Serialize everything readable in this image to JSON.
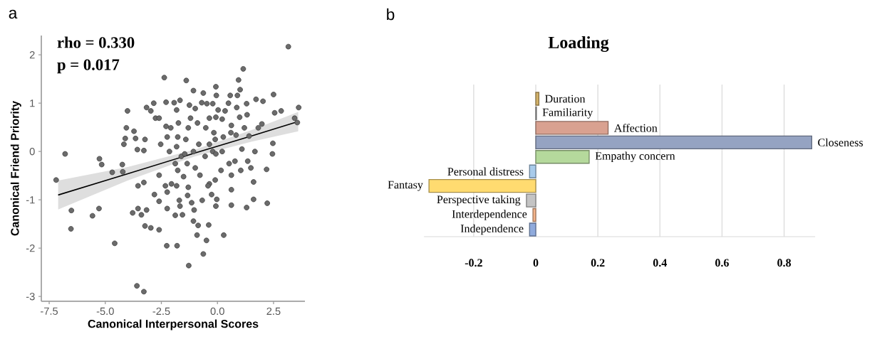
{
  "chart_data": [
    {
      "type": "scatter",
      "xlabel": "Canonical Interpersonal Scores",
      "ylabel": "Canonical Friend Priority",
      "annotations": [
        "a",
        "rho = 0.330",
        "p = 0.017"
      ],
      "xlim": [
        -7.85,
        3.9
      ],
      "ylim": [
        -3.1,
        2.4
      ],
      "xticks": [
        -7.5,
        {
          "value": -5,
          "label": "-5.0"
        },
        -2.5,
        {
          "value": 0,
          "label": "0.0"
        },
        2.5
      ],
      "yticks": [
        -3,
        -2,
        -1,
        0,
        1,
        2
      ],
      "series": [
        {
          "type": "scatter",
          "color": "#6b6b6b",
          "marker": "circle",
          "x": [
            -7.19,
            -6.79,
            -6.51,
            -6.53,
            -5.57,
            -5.28,
            -5.26,
            -5.16,
            -4.58,
            -4.69,
            -4.24,
            -4.22,
            -4.17,
            -4.11,
            -4.06,
            -4.01,
            -3.72,
            -3.78,
            -3.65,
            -3.59,
            -3.28,
            -3.54,
            -3.39,
            -3.16,
            -3.23,
            -2.97,
            -2.6,
            -3.54,
            -3.28,
            -3.57,
            -3.28,
            -3.16,
            -3.23,
            -2.97,
            -2.84,
            -2.76,
            -2.6,
            -2.53,
            -2.37,
            -2.29,
            -2.29,
            -2.24,
            -2.14,
            -2.08,
            -2.81,
            -2.6,
            -2.24,
            -2.26,
            -1.8,
            -2.24,
            -2.32,
            -2.05,
            -2.6,
            -1.82,
            -1.88,
            -1.56,
            -1.7,
            -1.67,
            -1.93,
            -1.82,
            -1.67,
            -1.74,
            -1.77,
            -1.82,
            -1.88,
            -1.77,
            -1.51,
            -1.61,
            -1.39,
            -1.25,
            -1.2,
            -1.3,
            -1.41,
            -1.46,
            -1.35,
            -1.3,
            -1.33,
            -1.15,
            -1.04,
            -1.07,
            -0.86,
            -0.91,
            -0.63,
            -1.28,
            -0.49,
            -0.39,
            -0.68,
            -1.07,
            -0.99,
            -0.89,
            -1.07,
            -0.83,
            -0.99,
            -0.78,
            -0.63,
            -0.7,
            -0.47,
            -0.36,
            -0.52,
            -0.55,
            -0.36,
            -0.36,
            -0.42,
            -0.26,
            -0.07,
            -0.05,
            -0.21,
            0.03,
            -0.07,
            -0.16,
            -0.1,
            -0.21,
            -0.07,
            -0.1,
            -0.03,
            -0.07,
            0.28,
            0.21,
            0.26,
            0.21,
            0.16,
            0.34,
            0.49,
            0.57,
            0.62,
            0.6,
            0.52,
            0.62,
            0.62,
            0.62,
            0.94,
            1.01,
            0.89,
            0.86,
            0.99,
            0.83,
            0.78,
            1.04,
            1.15,
            1.3,
            1.32,
            1.2,
            1.09,
            1.35,
            1.41,
            1.49,
            1.61,
            1.61,
            1.3,
            1.72,
            1.67,
            1.82,
            1.98,
            2.03,
            2.19,
            2.22,
            2.45,
            2.47,
            2.5,
            2.55,
            2.84,
            3.16,
            3.44,
            3.62,
            3.56
          ],
          "values": [
            -0.59,
            -0.05,
            -1.22,
            -1.6,
            -1.33,
            -1.18,
            -0.15,
            -0.27,
            -1.9,
            -0.43,
            -0.27,
            -0.42,
            0.15,
            0.27,
            0.49,
            0.84,
            0.42,
            -1.27,
            0.27,
            -2.78,
            -2.9,
            -1.18,
            -1.31,
            -1.21,
            -1.54,
            -1.58,
            -1.62,
            -0.71,
            -0.64,
            0.04,
            0.02,
            0.91,
            0.25,
            0.84,
            1.0,
            0.69,
            0.69,
            0.15,
            1.53,
            1.02,
            0.52,
            0.3,
            0.0,
            0.49,
            -0.89,
            -1.03,
            -1.18,
            -1.95,
            -1.95,
            -0.84,
            -0.71,
            -0.67,
            -0.49,
            -0.71,
            -1.32,
            -1.31,
            -1.01,
            -1.13,
            1.01,
            0.86,
            1.06,
            0.59,
            0.3,
            0.1,
            -0.25,
            -0.39,
            -0.52,
            -0.1,
            1.47,
            0.96,
            0.69,
            0.49,
            0.25,
            -0.05,
            -0.25,
            -0.74,
            -0.91,
            -1.06,
            -1.21,
            -1.44,
            -1.53,
            -1.73,
            -2.12,
            -2.36,
            -1.84,
            -1.52,
            -1.01,
            1.26,
            0.89,
            0.59,
            0.0,
            0.15,
            -0.34,
            -0.49,
            1.21,
            1.01,
            0.99,
            0.69,
            0.49,
            -0.1,
            0.15,
            -0.67,
            -0.71,
            -0.89,
            1.34,
            1.16,
            0.99,
            0.86,
            0.71,
            0.39,
            0.25,
            0.0,
            -0.05,
            -0.59,
            -0.99,
            -1.13,
            -1.73,
            0.67,
            0.3,
            0.0,
            -0.39,
            0.84,
            1.0,
            1.16,
            0.54,
            0.39,
            -0.25,
            -0.49,
            -0.79,
            -1.11,
            1.48,
            1.28,
            1.16,
            0.91,
            0.71,
            0.34,
            -0.2,
            -0.39,
            1.71,
            0.99,
            0.76,
            0.49,
            0.05,
            -0.2,
            0.32,
            -0.34,
            -0.63,
            -0.99,
            -1.16,
            1.08,
            0.0,
            0.49,
            0.57,
            1.04,
            -0.37,
            -1.07,
            -0.05,
            0.17,
            1.18,
            0.8,
            0.84,
            2.17,
            0.69,
            0.91,
            0.6
          ]
        },
        {
          "type": "line",
          "color": "#000000",
          "marker": "none",
          "x": [
            -7.1,
            -4,
            -1,
            1.5,
            3.6
          ],
          "values": [
            -0.9,
            -0.46,
            -0.03,
            0.32,
            0.62
          ],
          "lower": [
            -1.2,
            -0.6,
            -0.1,
            0.2,
            0.42
          ],
          "upper": [
            -0.6,
            -0.32,
            0.04,
            0.44,
            0.82
          ]
        }
      ]
    },
    {
      "type": "bar",
      "orientation": "horizontal",
      "title": "Loading",
      "annotations": [
        "b"
      ],
      "categories": [
        "Duration",
        "Familiarity",
        "Affection",
        "Closeness",
        "Empathy concern",
        "Personal distress",
        "Fantasy",
        "Perspective taking",
        "Interdependence",
        "Independence"
      ],
      "values": [
        0.01,
        0.002,
        0.233,
        0.889,
        0.172,
        -0.02,
        -0.344,
        -0.03,
        -0.009,
        -0.02
      ],
      "colors": [
        "#d4b36a",
        "#a6a6a6",
        "#d9a190",
        "#95a3c2",
        "#b5d99c",
        "#a8cbeb",
        "#ffdb70",
        "#c4c4c4",
        "#f5b48a",
        "#8faadc"
      ],
      "xlim": [
        -0.36,
        0.9
      ],
      "xticks": [
        -0.2,
        0,
        0.2,
        0.4,
        0.6,
        0.8
      ],
      "grid": "x"
    }
  ]
}
